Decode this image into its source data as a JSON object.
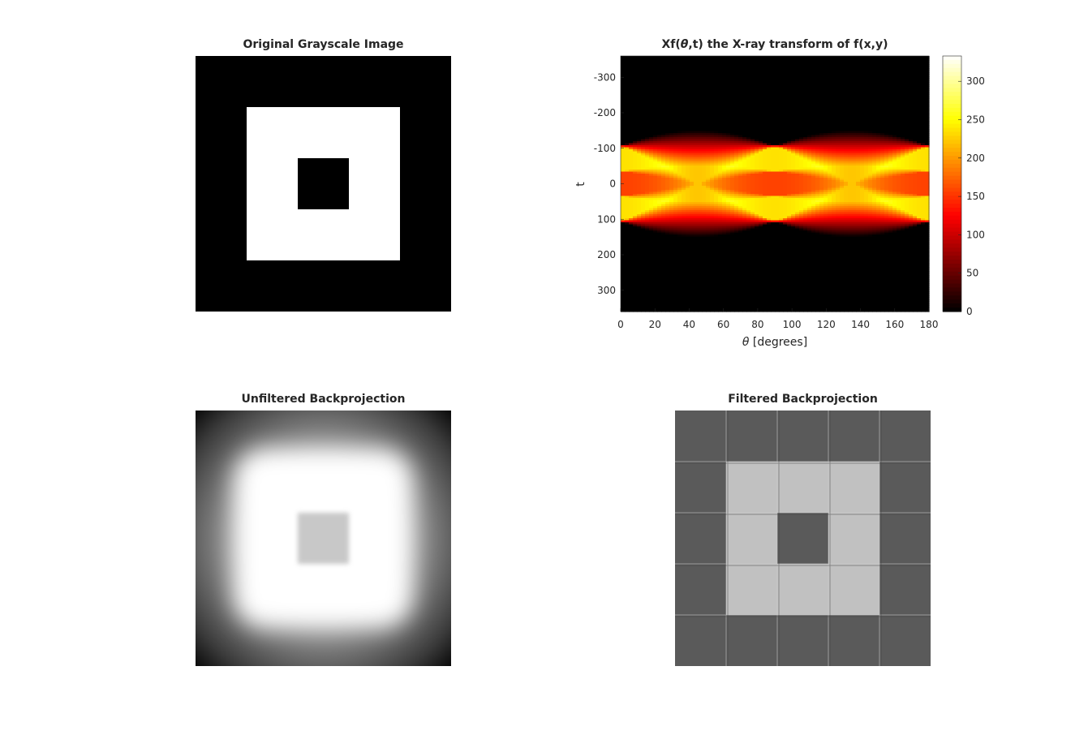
{
  "figure": {
    "titles": {
      "original": "Original Grayscale Image",
      "sinogram_prefix": "Xf(",
      "sinogram_theta": "θ",
      "sinogram_suffix": ",t) the X-ray transform of f(x,y)",
      "unfiltered": "Unfiltered Backprojection",
      "filtered": "Filtered Backprojection"
    }
  },
  "colors": {
    "background": "#ffffff",
    "axis_text": "#262626",
    "black": "#000000",
    "white": "#ffffff",
    "filtered_dark": "#5a5a5a",
    "filtered_light": "#c1c1c1",
    "hot_colormap": [
      "#000000",
      "#ff0000",
      "#ffff00",
      "#ffffff"
    ]
  },
  "chart_data": [
    {
      "type": "heatmap",
      "title": "Original Grayscale Image",
      "description_values": {
        "background": 0,
        "outer_square": 1,
        "inner_square": 0
      },
      "outer_square_fraction": [
        0.2,
        0.8
      ],
      "inner_square_fraction": [
        0.4,
        0.6
      ]
    },
    {
      "type": "heatmap",
      "title": "Xf(θ,t) the X-ray transform of f(x,y)",
      "xlabel": "θ [degrees]",
      "ylabel": "t",
      "xlim": [
        0,
        180
      ],
      "ylim": [
        -360,
        360
      ],
      "xticks": [
        0,
        20,
        40,
        60,
        80,
        100,
        120,
        140,
        160,
        180
      ],
      "yticks": [
        -300,
        -200,
        -100,
        0,
        100,
        200,
        300
      ],
      "colorbar": {
        "range": [
          0,
          333
        ],
        "ticks": [
          0,
          50,
          100,
          150,
          200,
          250,
          300
        ]
      },
      "outer_half_width": 150,
      "inner_half_width": 50,
      "peak_value": 333
    },
    {
      "type": "heatmap",
      "title": "Unfiltered Backprojection"
    },
    {
      "type": "heatmap",
      "title": "Filtered Backprojection"
    }
  ]
}
